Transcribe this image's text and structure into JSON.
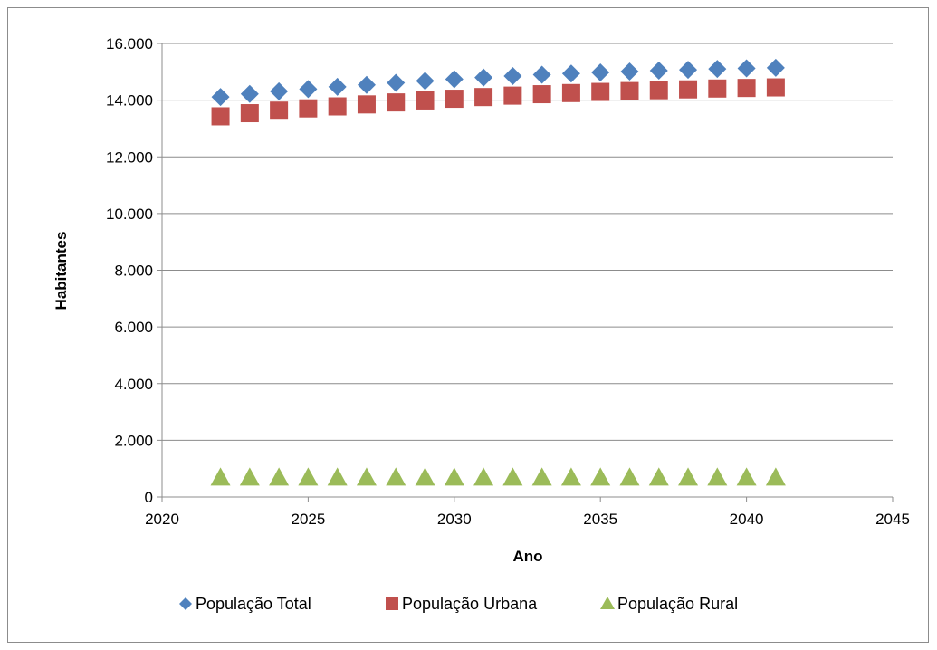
{
  "chart_data": {
    "type": "scatter",
    "title": "",
    "xlabel": "Ano",
    "ylabel": "Habitantes",
    "xlim": [
      2020,
      2045
    ],
    "ylim": [
      0,
      16000
    ],
    "x_ticks": [
      {
        "value": 2020,
        "label": "2020"
      },
      {
        "value": 2025,
        "label": "2025"
      },
      {
        "value": 2030,
        "label": "2030"
      },
      {
        "value": 2035,
        "label": "2035"
      },
      {
        "value": 2040,
        "label": "2040"
      },
      {
        "value": 2045,
        "label": "2045"
      }
    ],
    "y_ticks": [
      {
        "value": 0,
        "label": "0"
      },
      {
        "value": 2000,
        "label": "2.000"
      },
      {
        "value": 4000,
        "label": "4.000"
      },
      {
        "value": 6000,
        "label": "6.000"
      },
      {
        "value": 8000,
        "label": "8.000"
      },
      {
        "value": 10000,
        "label": "10.000"
      },
      {
        "value": 12000,
        "label": "12.000"
      },
      {
        "value": 14000,
        "label": "14.000"
      },
      {
        "value": 16000,
        "label": "16.000"
      }
    ],
    "grid": "horizontal",
    "legend_position": "bottom",
    "x": [
      2022,
      2023,
      2024,
      2025,
      2026,
      2027,
      2028,
      2029,
      2030,
      2031,
      2032,
      2033,
      2034,
      2035,
      2036,
      2037,
      2038,
      2039,
      2040,
      2041
    ],
    "series": [
      {
        "name": "População Total",
        "marker": "diamond",
        "color": "#4f81bd",
        "values": [
          14110,
          14220,
          14310,
          14390,
          14470,
          14540,
          14610,
          14680,
          14740,
          14800,
          14850,
          14900,
          14940,
          14980,
          15010,
          15040,
          15070,
          15100,
          15120,
          15140
        ]
      },
      {
        "name": "População Urbana",
        "marker": "square",
        "color": "#c0504d",
        "values": [
          13430,
          13540,
          13630,
          13710,
          13780,
          13850,
          13920,
          13990,
          14050,
          14110,
          14160,
          14210,
          14250,
          14290,
          14320,
          14350,
          14380,
          14410,
          14430,
          14450
        ]
      },
      {
        "name": "População Rural",
        "marker": "triangle",
        "color": "#9bbb59",
        "values": [
          690,
          690,
          690,
          690,
          690,
          690,
          690,
          690,
          690,
          690,
          690,
          690,
          690,
          690,
          690,
          690,
          690,
          690,
          690,
          690
        ]
      }
    ]
  }
}
